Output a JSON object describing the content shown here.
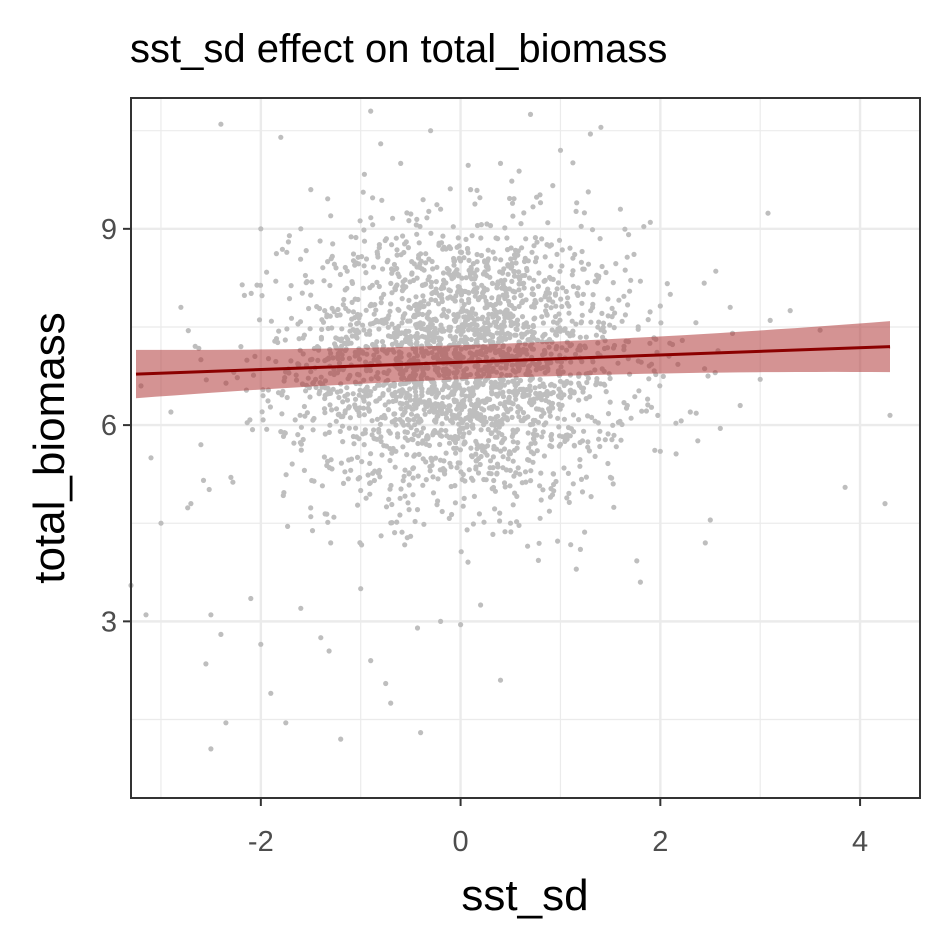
{
  "chart_data": {
    "type": "scatter",
    "title": "sst_sd effect on total_biomass",
    "xlabel": "sst_sd",
    "ylabel": "total_biomass",
    "xlim": [
      -3.3,
      4.6
    ],
    "ylim": [
      0.3,
      11.0
    ],
    "x_ticks": [
      -2,
      0,
      2,
      4
    ],
    "x_tick_labels": [
      "-2",
      "0",
      "2",
      "4"
    ],
    "y_ticks": [
      3,
      6,
      9
    ],
    "y_tick_labels": [
      "3",
      "6",
      "9"
    ],
    "grid": true,
    "legend": "none",
    "colors": {
      "points": "#bebebe",
      "trend_line": "#8b0000",
      "ribbon": "#b03a3a",
      "grid": "#ebebeb",
      "panel_border": "#333333"
    },
    "trend": {
      "x_range": [
        -3.25,
        4.3
      ],
      "y_start": 6.78,
      "y_end": 7.2,
      "ci_halfwidth_start": 0.37,
      "ci_halfwidth_mid": 0.26,
      "ci_halfwidth_end": 0.39,
      "ci_center_x": 0.3
    },
    "points": [
      [
        -2.4,
        10.6
      ],
      [
        -1.8,
        10.4
      ],
      [
        -0.9,
        10.8
      ],
      [
        0.7,
        10.75
      ],
      [
        1.3,
        10.45
      ],
      [
        -0.3,
        10.5
      ],
      [
        -0.8,
        10.3
      ],
      [
        0.4,
        10.0
      ],
      [
        1.0,
        10.2
      ],
      [
        -0.6,
        10.0
      ],
      [
        -1.5,
        9.6
      ],
      [
        0.1,
        9.6
      ],
      [
        1.6,
        9.3
      ],
      [
        -1.3,
        9.2
      ],
      [
        0.8,
        9.4
      ],
      [
        -2.0,
        9.0
      ],
      [
        -1.6,
        9.0
      ],
      [
        1.9,
        9.1
      ],
      [
        0.3,
        9.05
      ],
      [
        -0.2,
        9.3
      ],
      [
        -2.8,
        7.8
      ],
      [
        -3.2,
        6.6
      ],
      [
        -2.6,
        5.7
      ],
      [
        -3.1,
        5.5
      ],
      [
        -3.0,
        4.5
      ],
      [
        -3.15,
        3.1
      ],
      [
        -3.3,
        3.55
      ],
      [
        -2.5,
        3.1
      ],
      [
        -2.4,
        2.8
      ],
      [
        -2.55,
        2.35
      ],
      [
        -2.35,
        1.45
      ],
      [
        -2.5,
        1.05
      ],
      [
        -1.2,
        1.2
      ],
      [
        -0.4,
        1.3
      ],
      [
        0.4,
        2.1
      ],
      [
        -0.7,
        1.75
      ],
      [
        -0.75,
        2.05
      ],
      [
        -1.9,
        1.9
      ],
      [
        -1.75,
        1.45
      ],
      [
        -2.0,
        2.65
      ],
      [
        3.3,
        7.75
      ],
      [
        3.6,
        7.45
      ],
      [
        3.1,
        7.6
      ],
      [
        4.3,
        6.15
      ],
      [
        3.85,
        5.05
      ],
      [
        4.25,
        4.8
      ],
      [
        2.5,
        4.55
      ],
      [
        1.3,
        6.8
      ],
      [
        2.6,
        5.95
      ],
      [
        2.45,
        4.2
      ],
      [
        3.0,
        6.7
      ],
      [
        2.8,
        6.3
      ],
      [
        1.2,
        4.1
      ],
      [
        1.8,
        3.6
      ],
      [
        -1.4,
        2.75
      ],
      [
        -0.9,
        2.4
      ],
      [
        -0.2,
        3.0
      ],
      [
        0.0,
        2.95
      ],
      [
        0.2,
        3.25
      ],
      [
        -1.0,
        3.5
      ],
      [
        -1.6,
        3.2
      ],
      [
        -2.1,
        3.35
      ],
      [
        -1.3,
        4.2
      ],
      [
        -1.5,
        4.6
      ],
      [
        -1.0,
        5.0
      ],
      [
        -0.5,
        4.3
      ],
      [
        0.5,
        4.5
      ],
      [
        0.9,
        4.9
      ],
      [
        1.5,
        5.2
      ],
      [
        2.0,
        5.6
      ],
      [
        2.3,
        6.2
      ],
      [
        1.8,
        8.2
      ],
      [
        2.1,
        8.0
      ],
      [
        2.7,
        7.8
      ],
      [
        -2.2,
        7.2
      ],
      [
        -2.6,
        7.0
      ],
      [
        -2.3,
        5.2
      ],
      [
        -2.7,
        4.8
      ],
      [
        -2.9,
        6.2
      ],
      [
        -1.8,
        5.9
      ]
    ],
    "cloud": {
      "count": 2600,
      "center_x": 0.0,
      "center_y": 6.95,
      "sd_x": 0.85,
      "sd_y": 1.05
    }
  }
}
